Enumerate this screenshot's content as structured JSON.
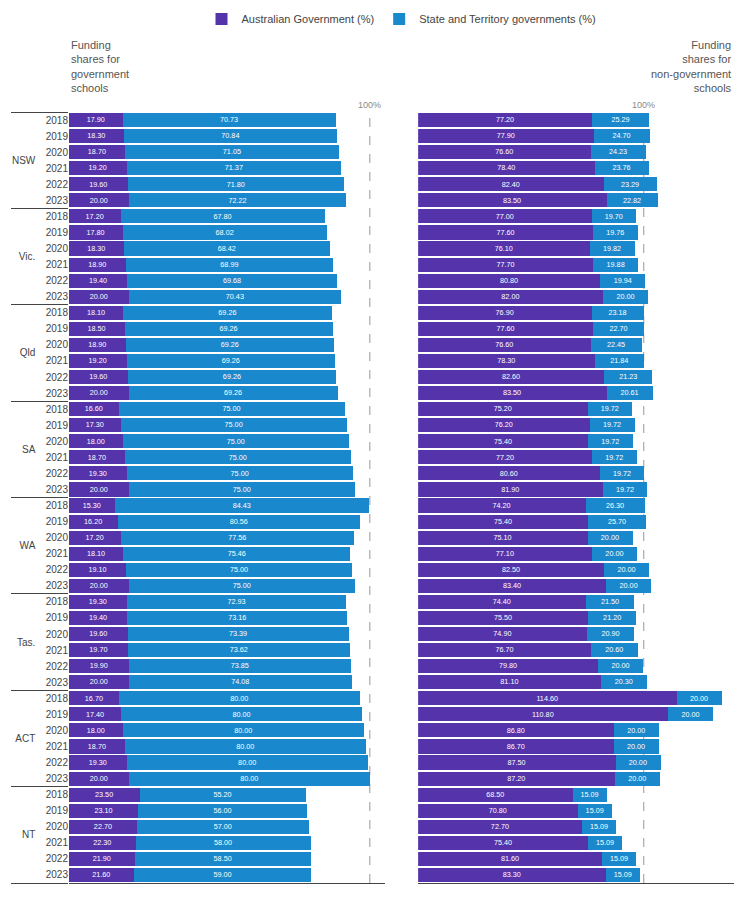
{
  "chart_data": [
    {
      "type": "bar",
      "orientation": "horizontal",
      "stacked": true,
      "data_labels": true,
      "grid": false,
      "tick_labels": "y",
      "legend": "top",
      "title": "Funding\nshares for\ngovernment\nschools",
      "categories": [
        [
          "NSW",
          "2018"
        ],
        [
          "NSW",
          "2019"
        ],
        [
          "NSW",
          "2020"
        ],
        [
          "NSW",
          "2021"
        ],
        [
          "NSW",
          "2022"
        ],
        [
          "NSW",
          "2023"
        ],
        [
          "Vic.",
          "2018"
        ],
        [
          "Vic.",
          "2019"
        ],
        [
          "Vic.",
          "2020"
        ],
        [
          "Vic.",
          "2021"
        ],
        [
          "Vic.",
          "2022"
        ],
        [
          "Vic.",
          "2023"
        ],
        [
          "Qld",
          "2018"
        ],
        [
          "Qld",
          "2019"
        ],
        [
          "Qld",
          "2020"
        ],
        [
          "Qld",
          "2021"
        ],
        [
          "Qld",
          "2022"
        ],
        [
          "Qld",
          "2023"
        ],
        [
          "SA",
          "2018"
        ],
        [
          "SA",
          "2019"
        ],
        [
          "SA",
          "2020"
        ],
        [
          "SA",
          "2021"
        ],
        [
          "SA",
          "2022"
        ],
        [
          "SA",
          "2023"
        ],
        [
          "WA",
          "2018"
        ],
        [
          "WA",
          "2019"
        ],
        [
          "WA",
          "2020"
        ],
        [
          "WA",
          "2021"
        ],
        [
          "WA",
          "2022"
        ],
        [
          "WA",
          "2023"
        ],
        [
          "Tas.",
          "2018"
        ],
        [
          "Tas.",
          "2019"
        ],
        [
          "Tas.",
          "2020"
        ],
        [
          "Tas.",
          "2021"
        ],
        [
          "Tas.",
          "2022"
        ],
        [
          "Tas.",
          "2023"
        ],
        [
          "ACT",
          "2018"
        ],
        [
          "ACT",
          "2019"
        ],
        [
          "ACT",
          "2020"
        ],
        [
          "ACT",
          "2021"
        ],
        [
          "ACT",
          "2022"
        ],
        [
          "ACT",
          "2023"
        ],
        [
          "NT",
          "2018"
        ],
        [
          "NT",
          "2019"
        ],
        [
          "NT",
          "2020"
        ],
        [
          "NT",
          "2021"
        ],
        [
          "NT",
          "2022"
        ],
        [
          "NT",
          "2023"
        ]
      ],
      "xlim": [
        0,
        105
      ],
      "annotations": [
        {
          "x": 100,
          "text": "100%"
        }
      ],
      "series": [
        {
          "name": "Australian Government (%)",
          "color": "#5533aa",
          "values": [
            17.9,
            18.3,
            18.7,
            19.2,
            19.6,
            20.0,
            17.2,
            17.8,
            18.3,
            18.9,
            19.4,
            20.0,
            18.1,
            18.5,
            18.9,
            19.2,
            19.6,
            20.0,
            16.6,
            17.3,
            18.0,
            18.7,
            19.3,
            20.0,
            15.3,
            16.2,
            17.2,
            18.1,
            19.1,
            20.0,
            19.3,
            19.4,
            19.6,
            19.7,
            19.9,
            20.0,
            16.7,
            17.4,
            18.0,
            18.7,
            19.3,
            20.0,
            23.5,
            23.1,
            22.7,
            22.3,
            21.9,
            21.6
          ],
          "value_labels": [
            "17.90",
            "18.30",
            "18.70",
            "19.20",
            "19.60",
            "20.00",
            "17.20",
            "17.80",
            "18.30",
            "18.90",
            "19.40",
            "20.00",
            "18.10",
            "18.50",
            "18.90",
            "19.20",
            "19.60",
            "20.00",
            "16.60",
            "17.30",
            "18.00",
            "18.70",
            "19.30",
            "20.00",
            "15.30",
            "16.20",
            "17.20",
            "18.10",
            "19.10",
            "20.00",
            "19.30",
            "19.40",
            "19.60",
            "19.70",
            "19.90",
            "20.00",
            "16.70",
            "17.40",
            "18.00",
            "18.70",
            "19.30",
            "20.00",
            "23.50",
            "23.10",
            "22.70",
            "22.30",
            "21.90",
            "21.60"
          ]
        },
        {
          "name": "State and Territory governments (%)",
          "color": "#1a88cc",
          "values": [
            70.73,
            70.84,
            71.05,
            71.37,
            71.8,
            72.22,
            67.8,
            68.02,
            68.42,
            68.99,
            69.68,
            70.43,
            69.26,
            69.26,
            69.26,
            69.26,
            69.26,
            69.26,
            75.0,
            75.0,
            75.0,
            75.0,
            75.0,
            75.0,
            84.43,
            80.56,
            77.56,
            75.46,
            75.0,
            75.0,
            72.93,
            73.16,
            73.39,
            73.62,
            73.85,
            74.08,
            80.0,
            80.0,
            80.0,
            80.0,
            80.0,
            80.0,
            55.2,
            56.0,
            57.0,
            58.0,
            58.5,
            59.0
          ],
          "value_labels": [
            "70.73",
            "70.84",
            "71.05",
            "71.37",
            "71.80",
            "72.22",
            "67.80",
            "68.02",
            "68.42",
            "68.99",
            "69.68",
            "70.43",
            "69.26",
            "69.26",
            "69.26",
            "69.26",
            "69.26",
            "69.26",
            "75.00",
            "75.00",
            "75.00",
            "75.00",
            "75.00",
            "75.00",
            "84.43",
            "80.56",
            "77.56",
            "75.46",
            "75.00",
            "75.00",
            "72.93",
            "73.16",
            "73.39",
            "73.62",
            "73.85",
            "74.08",
            "80.00",
            "80.00",
            "80.00",
            "80.00",
            "80.00",
            "80.00",
            "55.20",
            "56.00",
            "57.00",
            "58.00",
            "58.50",
            "59.00"
          ]
        }
      ]
    },
    {
      "type": "bar",
      "orientation": "horizontal",
      "stacked": true,
      "data_labels": true,
      "grid": false,
      "tick_labels": false,
      "title": "Funding\nshares for\nnon-government\nschools",
      "categories": [
        [
          "NSW",
          "2018"
        ],
        [
          "NSW",
          "2019"
        ],
        [
          "NSW",
          "2020"
        ],
        [
          "NSW",
          "2021"
        ],
        [
          "NSW",
          "2022"
        ],
        [
          "NSW",
          "2023"
        ],
        [
          "Vic.",
          "2018"
        ],
        [
          "Vic.",
          "2019"
        ],
        [
          "Vic.",
          "2020"
        ],
        [
          "Vic.",
          "2021"
        ],
        [
          "Vic.",
          "2022"
        ],
        [
          "Vic.",
          "2023"
        ],
        [
          "Qld",
          "2018"
        ],
        [
          "Qld",
          "2019"
        ],
        [
          "Qld",
          "2020"
        ],
        [
          "Qld",
          "2021"
        ],
        [
          "Qld",
          "2022"
        ],
        [
          "Qld",
          "2023"
        ],
        [
          "SA",
          "2018"
        ],
        [
          "SA",
          "2019"
        ],
        [
          "SA",
          "2020"
        ],
        [
          "SA",
          "2021"
        ],
        [
          "SA",
          "2022"
        ],
        [
          "SA",
          "2023"
        ],
        [
          "WA",
          "2018"
        ],
        [
          "WA",
          "2019"
        ],
        [
          "WA",
          "2020"
        ],
        [
          "WA",
          "2021"
        ],
        [
          "WA",
          "2022"
        ],
        [
          "WA",
          "2023"
        ],
        [
          "Tas.",
          "2018"
        ],
        [
          "Tas.",
          "2019"
        ],
        [
          "Tas.",
          "2020"
        ],
        [
          "Tas.",
          "2021"
        ],
        [
          "Tas.",
          "2022"
        ],
        [
          "Tas.",
          "2023"
        ],
        [
          "ACT",
          "2018"
        ],
        [
          "ACT",
          "2019"
        ],
        [
          "ACT",
          "2020"
        ],
        [
          "ACT",
          "2021"
        ],
        [
          "ACT",
          "2022"
        ],
        [
          "ACT",
          "2023"
        ],
        [
          "NT",
          "2018"
        ],
        [
          "NT",
          "2019"
        ],
        [
          "NT",
          "2020"
        ],
        [
          "NT",
          "2021"
        ],
        [
          "NT",
          "2022"
        ],
        [
          "NT",
          "2023"
        ]
      ],
      "xlim": [
        0,
        140
      ],
      "annotations": [
        {
          "x": 100,
          "text": "100%"
        }
      ],
      "series": [
        {
          "name": "Australian Government (%)",
          "color": "#5533aa",
          "values": [
            77.2,
            77.9,
            76.6,
            78.4,
            82.4,
            83.5,
            77.0,
            77.6,
            76.1,
            77.7,
            80.8,
            82.0,
            76.9,
            77.6,
            76.6,
            78.3,
            82.6,
            83.5,
            75.2,
            76.2,
            75.4,
            77.2,
            80.6,
            81.9,
            74.2,
            75.4,
            75.1,
            77.1,
            82.5,
            83.4,
            74.4,
            75.5,
            74.9,
            76.7,
            79.8,
            81.1,
            114.6,
            110.8,
            86.8,
            86.7,
            87.5,
            87.2,
            68.5,
            70.8,
            72.7,
            75.4,
            81.6,
            83.3
          ],
          "value_labels": [
            "77.20",
            "77.90",
            "76.60",
            "78.40",
            "82.40",
            "83.50",
            "77.00",
            "77.60",
            "76.10",
            "77.70",
            "80.80",
            "82.00",
            "76.90",
            "77.60",
            "76.60",
            "78.30",
            "82.60",
            "83.50",
            "75.20",
            "76.20",
            "75.40",
            "77.20",
            "80.60",
            "81.90",
            "74.20",
            "75.40",
            "75.10",
            "77.10",
            "82.50",
            "83.40",
            "74.40",
            "75.50",
            "74.90",
            "76.70",
            "79.80",
            "81.10",
            "114.60",
            "110.80",
            "86.80",
            "86.70",
            "87.50",
            "87.20",
            "68.50",
            "70.80",
            "72.70",
            "75.40",
            "81.60",
            "83.30"
          ]
        },
        {
          "name": "State and Territory governments (%)",
          "color": "#1a88cc",
          "values": [
            25.29,
            24.7,
            24.23,
            23.76,
            23.29,
            22.82,
            19.7,
            19.76,
            19.82,
            19.88,
            19.94,
            20.0,
            23.18,
            22.7,
            22.45,
            21.84,
            21.23,
            20.61,
            19.72,
            19.72,
            19.72,
            19.72,
            19.72,
            19.72,
            26.3,
            25.7,
            20.0,
            20.0,
            20.0,
            20.0,
            21.5,
            21.2,
            20.9,
            20.6,
            20.0,
            20.3,
            20.0,
            20.0,
            20.0,
            20.0,
            20.0,
            20.0,
            15.09,
            15.09,
            15.09,
            15.09,
            15.09,
            15.09
          ],
          "value_labels": [
            "25.29",
            "24.70",
            "24.23",
            "23.76",
            "23.29",
            "22.82",
            "19.70",
            "19.76",
            "19.82",
            "19.88",
            "19.94",
            "20.00",
            "23.18",
            "22.70",
            "22.45",
            "21.84",
            "21.23",
            "20.61",
            "19.72",
            "19.72",
            "19.72",
            "19.72",
            "19.72",
            "19.72",
            "26.30",
            "25.70",
            "20.00",
            "20.00",
            "20.00",
            "20.00",
            "21.50",
            "21.20",
            "20.90",
            "20.60",
            "20.00",
            "20.30",
            "20.00",
            "20.00",
            "20.00",
            "20.00",
            "20.00",
            "20.00",
            "15.09",
            "15.09",
            "15.09",
            "15.09",
            "15.09",
            "15.09"
          ]
        }
      ]
    }
  ]
}
